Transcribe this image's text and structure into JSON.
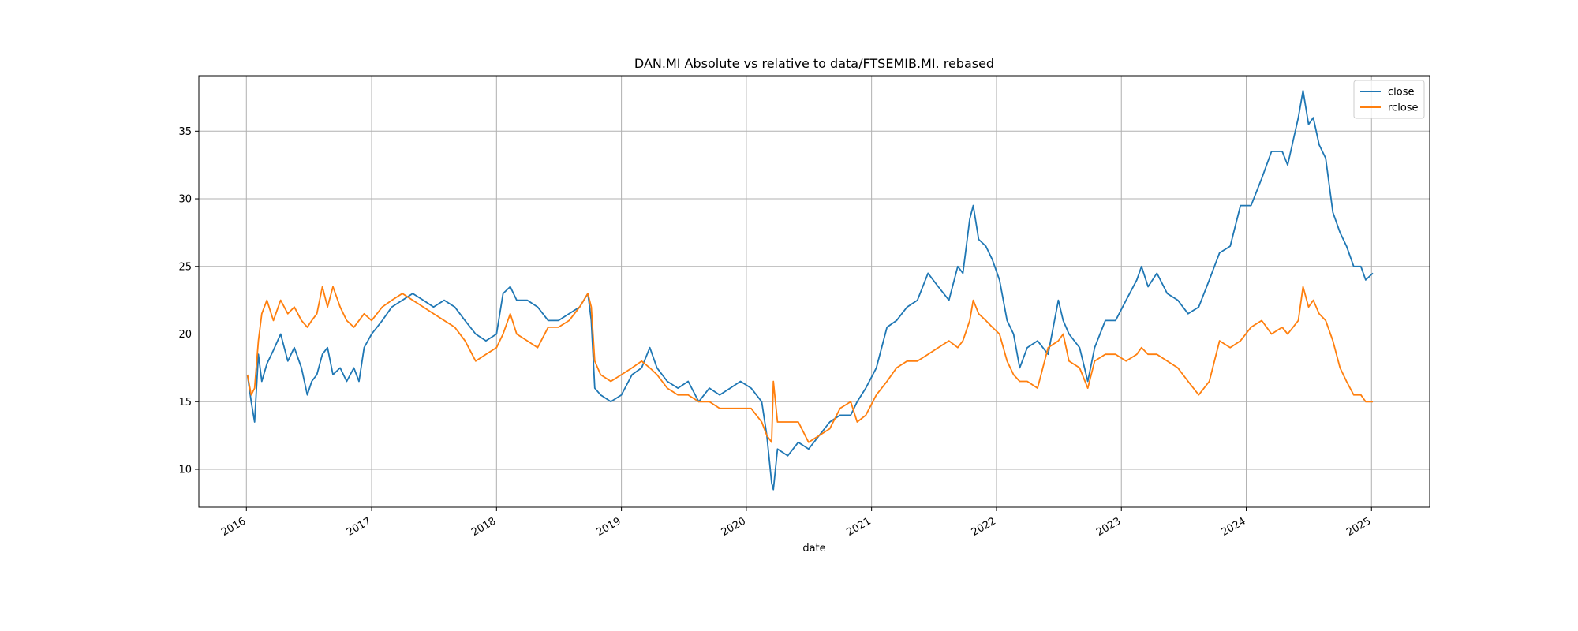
{
  "chart_data": {
    "type": "line",
    "title": "DAN.MI Absolute vs relative to data/FTSEMIB.MI. rebased",
    "xlabel": "date",
    "ylabel": "",
    "xlim": [
      "2015-08-15",
      "2025-06-20"
    ],
    "ylim": [
      7.2,
      39.1
    ],
    "x_ticks": [
      "2016",
      "2017",
      "2018",
      "2019",
      "2020",
      "2021",
      "2022",
      "2023",
      "2024",
      "2025"
    ],
    "y_ticks": [
      10,
      15,
      20,
      25,
      30,
      35
    ],
    "grid": true,
    "legend": "top-right",
    "series": [
      {
        "name": "close",
        "color": "#1f77b4",
        "points": [
          [
            "2016-01-04",
            17.0
          ],
          [
            "2016-01-15",
            15.0
          ],
          [
            "2016-01-25",
            13.5
          ],
          [
            "2016-02-05",
            18.5
          ],
          [
            "2016-02-15",
            16.5
          ],
          [
            "2016-03-01",
            17.8
          ],
          [
            "2016-03-20",
            18.8
          ],
          [
            "2016-04-10",
            20.0
          ],
          [
            "2016-05-01",
            18.0
          ],
          [
            "2016-05-20",
            19.0
          ],
          [
            "2016-06-10",
            17.5
          ],
          [
            "2016-06-27",
            15.5
          ],
          [
            "2016-07-10",
            16.5
          ],
          [
            "2016-07-25",
            17.0
          ],
          [
            "2016-08-10",
            18.5
          ],
          [
            "2016-08-25",
            19.0
          ],
          [
            "2016-09-10",
            17.0
          ],
          [
            "2016-10-01",
            17.5
          ],
          [
            "2016-10-20",
            16.5
          ],
          [
            "2016-11-10",
            17.5
          ],
          [
            "2016-11-25",
            16.5
          ],
          [
            "2016-12-10",
            19.0
          ],
          [
            "2017-01-01",
            20.0
          ],
          [
            "2017-02-01",
            21.0
          ],
          [
            "2017-03-01",
            22.0
          ],
          [
            "2017-04-01",
            22.5
          ],
          [
            "2017-05-01",
            23.0
          ],
          [
            "2017-06-01",
            22.5
          ],
          [
            "2017-07-01",
            22.0
          ],
          [
            "2017-08-01",
            22.5
          ],
          [
            "2017-09-01",
            22.0
          ],
          [
            "2017-10-01",
            21.0
          ],
          [
            "2017-11-01",
            20.0
          ],
          [
            "2017-12-01",
            19.5
          ],
          [
            "2018-01-01",
            20.0
          ],
          [
            "2018-01-20",
            23.0
          ],
          [
            "2018-02-10",
            23.5
          ],
          [
            "2018-03-01",
            22.5
          ],
          [
            "2018-04-01",
            22.5
          ],
          [
            "2018-05-01",
            22.0
          ],
          [
            "2018-06-01",
            21.0
          ],
          [
            "2018-07-01",
            21.0
          ],
          [
            "2018-08-01",
            21.5
          ],
          [
            "2018-09-01",
            22.0
          ],
          [
            "2018-09-25",
            23.0
          ],
          [
            "2018-10-05",
            21.0
          ],
          [
            "2018-10-15",
            16.0
          ],
          [
            "2018-11-01",
            15.5
          ],
          [
            "2018-12-01",
            15.0
          ],
          [
            "2019-01-01",
            15.5
          ],
          [
            "2019-02-01",
            17.0
          ],
          [
            "2019-03-01",
            17.5
          ],
          [
            "2019-03-25",
            19.0
          ],
          [
            "2019-04-15",
            17.5
          ],
          [
            "2019-05-15",
            16.5
          ],
          [
            "2019-06-15",
            16.0
          ],
          [
            "2019-07-15",
            16.5
          ],
          [
            "2019-08-15",
            15.0
          ],
          [
            "2019-09-15",
            16.0
          ],
          [
            "2019-10-15",
            15.5
          ],
          [
            "2019-11-15",
            16.0
          ],
          [
            "2019-12-15",
            16.5
          ],
          [
            "2020-01-15",
            16.0
          ],
          [
            "2020-02-15",
            15.0
          ],
          [
            "2020-03-01",
            12.5
          ],
          [
            "2020-03-15",
            9.0
          ],
          [
            "2020-03-20",
            8.5
          ],
          [
            "2020-04-01",
            11.5
          ],
          [
            "2020-05-01",
            11.0
          ],
          [
            "2020-06-01",
            12.0
          ],
          [
            "2020-07-01",
            11.5
          ],
          [
            "2020-08-01",
            12.5
          ],
          [
            "2020-09-01",
            13.5
          ],
          [
            "2020-10-01",
            14.0
          ],
          [
            "2020-11-01",
            14.0
          ],
          [
            "2020-11-20",
            15.0
          ],
          [
            "2020-12-15",
            16.0
          ],
          [
            "2021-01-15",
            17.5
          ],
          [
            "2021-02-15",
            20.5
          ],
          [
            "2021-03-15",
            21.0
          ],
          [
            "2021-04-15",
            22.0
          ],
          [
            "2021-05-15",
            22.5
          ],
          [
            "2021-06-15",
            24.5
          ],
          [
            "2021-07-15",
            23.5
          ],
          [
            "2021-08-15",
            22.5
          ],
          [
            "2021-09-10",
            25.0
          ],
          [
            "2021-09-25",
            24.5
          ],
          [
            "2021-10-15",
            28.5
          ],
          [
            "2021-10-25",
            29.5
          ],
          [
            "2021-11-10",
            27.0
          ],
          [
            "2021-12-01",
            26.5
          ],
          [
            "2021-12-20",
            25.5
          ],
          [
            "2022-01-10",
            24.0
          ],
          [
            "2022-02-01",
            21.0
          ],
          [
            "2022-02-20",
            20.0
          ],
          [
            "2022-03-10",
            17.5
          ],
          [
            "2022-04-01",
            19.0
          ],
          [
            "2022-05-01",
            19.5
          ],
          [
            "2022-06-01",
            18.5
          ],
          [
            "2022-07-01",
            22.5
          ],
          [
            "2022-07-15",
            21.0
          ],
          [
            "2022-08-01",
            20.0
          ],
          [
            "2022-09-01",
            19.0
          ],
          [
            "2022-09-25",
            16.5
          ],
          [
            "2022-10-15",
            19.0
          ],
          [
            "2022-11-15",
            21.0
          ],
          [
            "2022-12-15",
            21.0
          ],
          [
            "2023-01-15",
            22.5
          ],
          [
            "2023-02-15",
            24.0
          ],
          [
            "2023-03-01",
            25.0
          ],
          [
            "2023-03-20",
            23.5
          ],
          [
            "2023-04-15",
            24.5
          ],
          [
            "2023-05-15",
            23.0
          ],
          [
            "2023-06-15",
            22.5
          ],
          [
            "2023-07-15",
            21.5
          ],
          [
            "2023-08-15",
            22.0
          ],
          [
            "2023-09-15",
            24.0
          ],
          [
            "2023-10-15",
            26.0
          ],
          [
            "2023-11-15",
            26.5
          ],
          [
            "2023-12-15",
            29.5
          ],
          [
            "2024-01-15",
            29.5
          ],
          [
            "2024-02-15",
            31.5
          ],
          [
            "2024-03-15",
            33.5
          ],
          [
            "2024-04-15",
            33.5
          ],
          [
            "2024-05-01",
            32.5
          ],
          [
            "2024-06-01",
            36.0
          ],
          [
            "2024-06-15",
            38.0
          ],
          [
            "2024-07-01",
            35.5
          ],
          [
            "2024-07-15",
            36.0
          ],
          [
            "2024-08-01",
            34.0
          ],
          [
            "2024-08-20",
            33.0
          ],
          [
            "2024-09-10",
            29.0
          ],
          [
            "2024-10-01",
            27.5
          ],
          [
            "2024-10-20",
            26.5
          ],
          [
            "2024-11-10",
            25.0
          ],
          [
            "2024-12-01",
            25.0
          ],
          [
            "2024-12-15",
            24.0
          ],
          [
            "2025-01-05",
            24.5
          ]
        ]
      },
      {
        "name": "rclose",
        "color": "#ff7f0e",
        "points": [
          [
            "2016-01-04",
            17.0
          ],
          [
            "2016-01-15",
            15.5
          ],
          [
            "2016-01-25",
            16.0
          ],
          [
            "2016-02-05",
            19.5
          ],
          [
            "2016-02-15",
            21.5
          ],
          [
            "2016-03-01",
            22.5
          ],
          [
            "2016-03-20",
            21.0
          ],
          [
            "2016-04-10",
            22.5
          ],
          [
            "2016-05-01",
            21.5
          ],
          [
            "2016-05-20",
            22.0
          ],
          [
            "2016-06-10",
            21.0
          ],
          [
            "2016-06-27",
            20.5
          ],
          [
            "2016-07-10",
            21.0
          ],
          [
            "2016-07-25",
            21.5
          ],
          [
            "2016-08-10",
            23.5
          ],
          [
            "2016-08-25",
            22.0
          ],
          [
            "2016-09-10",
            23.5
          ],
          [
            "2016-10-01",
            22.0
          ],
          [
            "2016-10-20",
            21.0
          ],
          [
            "2016-11-10",
            20.5
          ],
          [
            "2016-11-25",
            21.0
          ],
          [
            "2016-12-10",
            21.5
          ],
          [
            "2017-01-01",
            21.0
          ],
          [
            "2017-02-01",
            22.0
          ],
          [
            "2017-03-01",
            22.5
          ],
          [
            "2017-04-01",
            23.0
          ],
          [
            "2017-05-01",
            22.5
          ],
          [
            "2017-06-01",
            22.0
          ],
          [
            "2017-07-01",
            21.5
          ],
          [
            "2017-08-01",
            21.0
          ],
          [
            "2017-09-01",
            20.5
          ],
          [
            "2017-10-01",
            19.5
          ],
          [
            "2017-11-01",
            18.0
          ],
          [
            "2017-12-01",
            18.5
          ],
          [
            "2018-01-01",
            19.0
          ],
          [
            "2018-01-20",
            20.0
          ],
          [
            "2018-02-10",
            21.5
          ],
          [
            "2018-03-01",
            20.0
          ],
          [
            "2018-04-01",
            19.5
          ],
          [
            "2018-05-01",
            19.0
          ],
          [
            "2018-06-01",
            20.5
          ],
          [
            "2018-07-01",
            20.5
          ],
          [
            "2018-08-01",
            21.0
          ],
          [
            "2018-09-01",
            22.0
          ],
          [
            "2018-09-25",
            23.0
          ],
          [
            "2018-10-05",
            22.0
          ],
          [
            "2018-10-15",
            18.0
          ],
          [
            "2018-11-01",
            17.0
          ],
          [
            "2018-12-01",
            16.5
          ],
          [
            "2019-01-01",
            17.0
          ],
          [
            "2019-02-01",
            17.5
          ],
          [
            "2019-03-01",
            18.0
          ],
          [
            "2019-03-25",
            17.5
          ],
          [
            "2019-04-15",
            17.0
          ],
          [
            "2019-05-15",
            16.0
          ],
          [
            "2019-06-15",
            15.5
          ],
          [
            "2019-07-15",
            15.5
          ],
          [
            "2019-08-15",
            15.0
          ],
          [
            "2019-09-15",
            15.0
          ],
          [
            "2019-10-15",
            14.5
          ],
          [
            "2019-11-15",
            14.5
          ],
          [
            "2019-12-15",
            14.5
          ],
          [
            "2020-01-15",
            14.5
          ],
          [
            "2020-02-15",
            13.5
          ],
          [
            "2020-03-01",
            12.5
          ],
          [
            "2020-03-15",
            12.0
          ],
          [
            "2020-03-20",
            16.5
          ],
          [
            "2020-04-01",
            13.5
          ],
          [
            "2020-05-01",
            13.5
          ],
          [
            "2020-06-01",
            13.5
          ],
          [
            "2020-07-01",
            12.0
          ],
          [
            "2020-08-01",
            12.5
          ],
          [
            "2020-09-01",
            13.0
          ],
          [
            "2020-10-01",
            14.5
          ],
          [
            "2020-11-01",
            15.0
          ],
          [
            "2020-11-20",
            13.5
          ],
          [
            "2020-12-15",
            14.0
          ],
          [
            "2021-01-15",
            15.5
          ],
          [
            "2021-02-15",
            16.5
          ],
          [
            "2021-03-15",
            17.5
          ],
          [
            "2021-04-15",
            18.0
          ],
          [
            "2021-05-15",
            18.0
          ],
          [
            "2021-06-15",
            18.5
          ],
          [
            "2021-07-15",
            19.0
          ],
          [
            "2021-08-15",
            19.5
          ],
          [
            "2021-09-10",
            19.0
          ],
          [
            "2021-09-25",
            19.5
          ],
          [
            "2021-10-15",
            21.0
          ],
          [
            "2021-10-25",
            22.5
          ],
          [
            "2021-11-10",
            21.5
          ],
          [
            "2021-12-01",
            21.0
          ],
          [
            "2021-12-20",
            20.5
          ],
          [
            "2022-01-10",
            20.0
          ],
          [
            "2022-02-01",
            18.0
          ],
          [
            "2022-02-20",
            17.0
          ],
          [
            "2022-03-10",
            16.5
          ],
          [
            "2022-04-01",
            16.5
          ],
          [
            "2022-05-01",
            16.0
          ],
          [
            "2022-06-01",
            19.0
          ],
          [
            "2022-07-01",
            19.5
          ],
          [
            "2022-07-15",
            20.0
          ],
          [
            "2022-08-01",
            18.0
          ],
          [
            "2022-09-01",
            17.5
          ],
          [
            "2022-09-25",
            16.0
          ],
          [
            "2022-10-15",
            18.0
          ],
          [
            "2022-11-15",
            18.5
          ],
          [
            "2022-12-15",
            18.5
          ],
          [
            "2023-01-15",
            18.0
          ],
          [
            "2023-02-15",
            18.5
          ],
          [
            "2023-03-01",
            19.0
          ],
          [
            "2023-03-20",
            18.5
          ],
          [
            "2023-04-15",
            18.5
          ],
          [
            "2023-05-15",
            18.0
          ],
          [
            "2023-06-15",
            17.5
          ],
          [
            "2023-07-15",
            16.5
          ],
          [
            "2023-08-15",
            15.5
          ],
          [
            "2023-09-15",
            16.5
          ],
          [
            "2023-10-15",
            19.5
          ],
          [
            "2023-11-15",
            19.0
          ],
          [
            "2023-12-15",
            19.5
          ],
          [
            "2024-01-15",
            20.5
          ],
          [
            "2024-02-15",
            21.0
          ],
          [
            "2024-03-15",
            20.0
          ],
          [
            "2024-04-15",
            20.5
          ],
          [
            "2024-05-01",
            20.0
          ],
          [
            "2024-06-01",
            21.0
          ],
          [
            "2024-06-15",
            23.5
          ],
          [
            "2024-07-01",
            22.0
          ],
          [
            "2024-07-15",
            22.5
          ],
          [
            "2024-08-01",
            21.5
          ],
          [
            "2024-08-20",
            21.0
          ],
          [
            "2024-09-10",
            19.5
          ],
          [
            "2024-10-01",
            17.5
          ],
          [
            "2024-10-20",
            16.5
          ],
          [
            "2024-11-10",
            15.5
          ],
          [
            "2024-12-01",
            15.5
          ],
          [
            "2024-12-15",
            15.0
          ],
          [
            "2025-01-05",
            15.0
          ]
        ]
      }
    ]
  }
}
